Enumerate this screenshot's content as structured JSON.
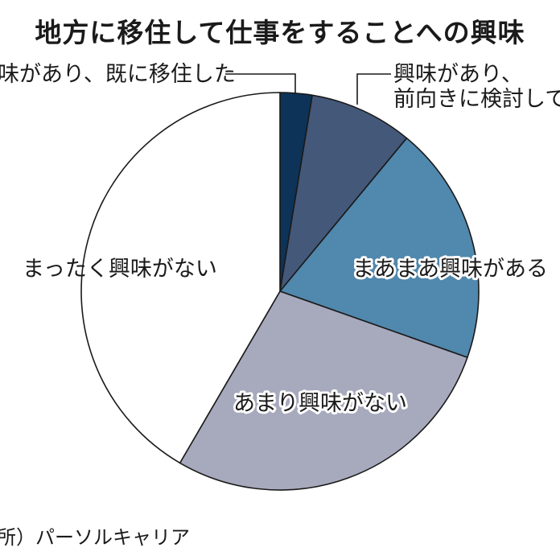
{
  "title": "地方に移住して仕事をすることへの興味",
  "source": "出所）パーソルキャリア",
  "chart_data": {
    "type": "pie",
    "title": "地方に移住して仕事をすることへの興味",
    "start_angle_deg": 0,
    "direction": "clockwise",
    "slices": [
      {
        "label": "興味があり、既に移住した",
        "value": 2.6,
        "color": "#0d3358"
      },
      {
        "label": "興味があり、前向きに検討している",
        "value": 8.4,
        "color": "#44587a"
      },
      {
        "label": "まあまあ興味がある",
        "value": 19.4,
        "color": "#5188ad"
      },
      {
        "label": "あまり興味がない",
        "value": 28.0,
        "color": "#a7a9bd"
      },
      {
        "label": "まったく興味がない",
        "value": 41.6,
        "color": "#ffffff"
      }
    ],
    "callout_lines": {
      "slice0": "興味があり、既に移住した",
      "slice1_line1": "興味があり、",
      "slice1_line2": "前向きに検討している"
    }
  }
}
